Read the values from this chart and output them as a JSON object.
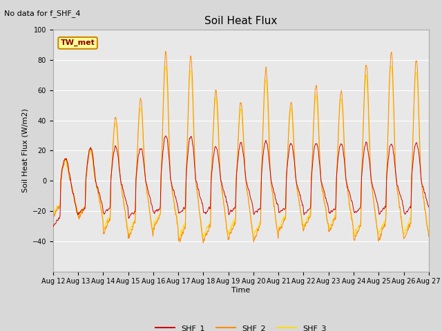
{
  "title": "Soil Heat Flux",
  "top_left_note": "No data for f_SHF_4",
  "ylabel": "Soil Heat Flux (W/m2)",
  "xlabel": "Time",
  "ylim": [
    -60,
    100
  ],
  "yticks": [
    -40,
    -20,
    0,
    20,
    40,
    60,
    80,
    100
  ],
  "background_color": "#d8d8d8",
  "plot_bg_color": "#e8e8e8",
  "shf1_color": "#cc0000",
  "shf2_color": "#ff8c00",
  "shf3_color": "#ffdd00",
  "legend_labels": [
    "SHF_1",
    "SHF_2",
    "SHF_3"
  ],
  "station_label": "TW_met",
  "station_label_bg": "#ffff99",
  "station_label_border": "#cc8800",
  "days": 15,
  "start_day": 12,
  "points_per_day": 144,
  "figwidth": 6.4,
  "figheight": 4.8,
  "dpi": 100
}
